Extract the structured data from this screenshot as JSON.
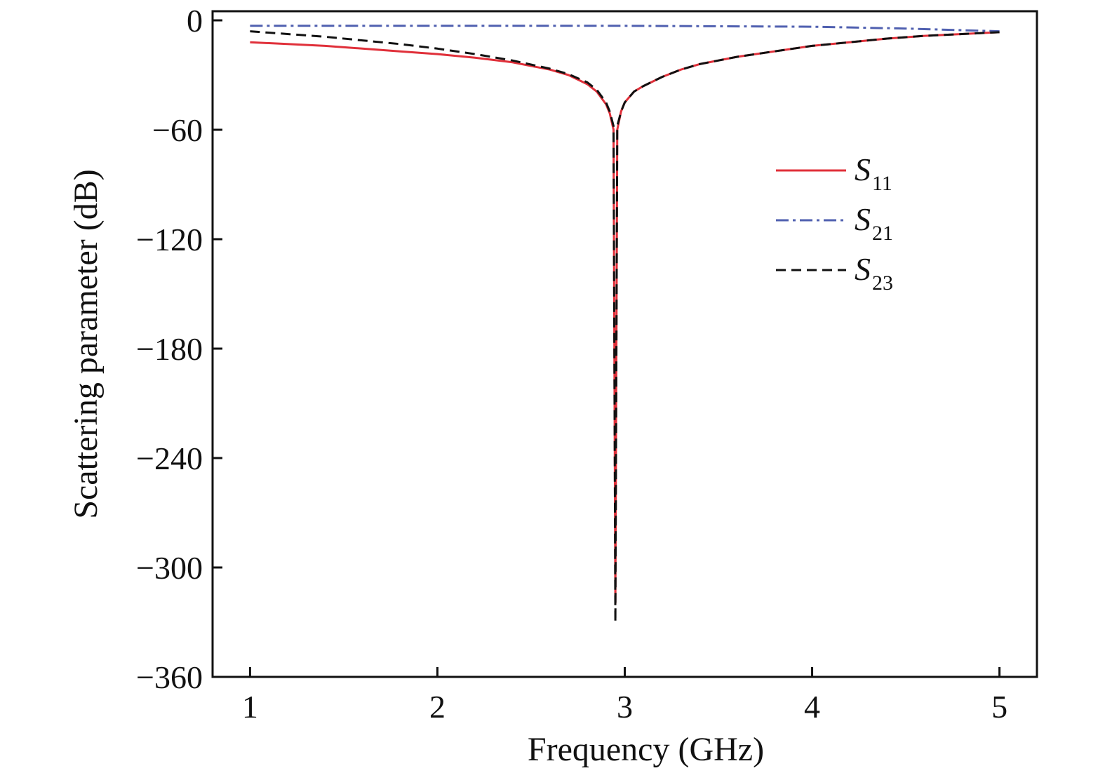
{
  "chart_data": {
    "type": "line",
    "xlabel": "Frequency (GHz)",
    "ylabel": "Scattering parameter (dB)",
    "xlim": [
      0.8,
      5.2
    ],
    "ylim": [
      -360,
      5
    ],
    "xticks": [
      1,
      2,
      3,
      4,
      5
    ],
    "yticks": [
      0,
      -60,
      -120,
      -180,
      -240,
      -300,
      -360
    ],
    "ytick_labels": [
      "0",
      "−60",
      "−120",
      "−180",
      "−240",
      "−300",
      "−360"
    ],
    "grid": false,
    "legend_position": "top-right",
    "series": [
      {
        "name": "S11",
        "name_main": "S",
        "name_sub": "11",
        "color": "#e0303a",
        "dash": "solid",
        "x": [
          1.0,
          1.2,
          1.4,
          1.6,
          1.8,
          2.0,
          2.2,
          2.4,
          2.6,
          2.7,
          2.8,
          2.85,
          2.9,
          2.92,
          2.94,
          2.95,
          2.96,
          2.98,
          3.0,
          3.05,
          3.1,
          3.2,
          3.3,
          3.4,
          3.6,
          3.8,
          4.0,
          4.2,
          4.4,
          4.6,
          4.8,
          5.0
        ],
        "y": [
          -12,
          -13,
          -14,
          -15.5,
          -17,
          -18.5,
          -20.5,
          -23,
          -27,
          -30,
          -35,
          -39,
          -46,
          -51,
          -60,
          -320,
          -60,
          -50,
          -45,
          -39,
          -36,
          -31,
          -27,
          -24,
          -20,
          -17,
          -14,
          -12,
          -10,
          -8.5,
          -7.5,
          -6.5
        ]
      },
      {
        "name": "S21",
        "name_main": "S",
        "name_sub": "21",
        "color": "#5060b0",
        "dash": "dashdot",
        "x": [
          1.0,
          2.0,
          3.0,
          4.0,
          4.5,
          5.0
        ],
        "y": [
          -3,
          -3,
          -3,
          -3.5,
          -4.5,
          -6
        ]
      },
      {
        "name": "S23",
        "name_main": "S",
        "name_sub": "23",
        "color": "#111111",
        "dash": "dashed",
        "x": [
          1.0,
          1.2,
          1.4,
          1.6,
          1.8,
          2.0,
          2.2,
          2.4,
          2.6,
          2.7,
          2.8,
          2.85,
          2.9,
          2.92,
          2.94,
          2.95,
          2.96,
          2.98,
          3.0,
          3.05,
          3.1,
          3.2,
          3.3,
          3.4,
          3.6,
          3.8,
          4.0,
          4.2,
          4.4,
          4.6,
          4.8,
          5.0
        ],
        "y": [
          -6,
          -7.5,
          -9,
          -11,
          -13,
          -15.5,
          -18.5,
          -22,
          -26.5,
          -29.5,
          -34,
          -38,
          -45,
          -50,
          -58,
          -330,
          -58,
          -50,
          -45,
          -39,
          -36,
          -31,
          -27,
          -24,
          -20,
          -17,
          -14,
          -12,
          -10,
          -8.5,
          -7.5,
          -6.5
        ]
      }
    ]
  }
}
